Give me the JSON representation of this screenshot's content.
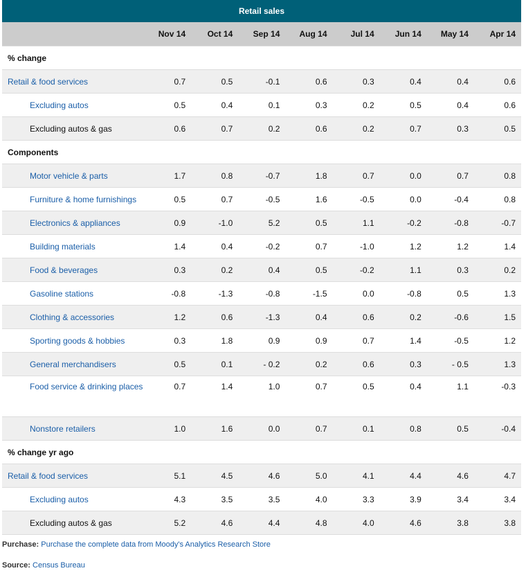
{
  "title": "Retail sales",
  "columns": [
    "Nov 14",
    "Oct 14",
    "Sep 14",
    "Aug 14",
    "Jul 14",
    "Jun 14",
    "May 14",
    "Apr 14"
  ],
  "sections": [
    {
      "label": "% change",
      "rows": [
        {
          "label": "Retail & food services",
          "indent": false,
          "link": true,
          "values": [
            "0.7",
            "0.5",
            "-0.1",
            "0.6",
            "0.3",
            "0.4",
            "0.4",
            "0.6"
          ]
        },
        {
          "label": "Excluding autos",
          "indent": true,
          "link": true,
          "values": [
            "0.5",
            "0.4",
            "0.1",
            "0.3",
            "0.2",
            "0.5",
            "0.4",
            "0.6"
          ]
        },
        {
          "label": "Excluding autos & gas",
          "indent": true,
          "link": false,
          "values": [
            "0.6",
            "0.7",
            "0.2",
            "0.6",
            "0.2",
            "0.7",
            "0.3",
            "0.5"
          ]
        }
      ]
    },
    {
      "label": "Components",
      "rows": [
        {
          "label": "Motor vehicle & parts",
          "indent": true,
          "link": true,
          "values": [
            "1.7",
            "0.8",
            "-0.7",
            "1.8",
            "0.7",
            "0.0",
            "0.7",
            "0.8"
          ]
        },
        {
          "label": "Furniture & home furnishings",
          "indent": true,
          "link": true,
          "values": [
            "0.5",
            "0.7",
            "-0.5",
            "1.6",
            "-0.5",
            "0.0",
            "-0.4",
            "0.8"
          ]
        },
        {
          "label": "Electronics & appliances",
          "indent": true,
          "link": true,
          "values": [
            "0.9",
            "-1.0",
            "5.2",
            "0.5",
            "1.1",
            "-0.2",
            "-0.8",
            "-0.7"
          ]
        },
        {
          "label": "Building materials",
          "indent": true,
          "link": true,
          "values": [
            "1.4",
            "0.4",
            "-0.2",
            "0.7",
            "-1.0",
            "1.2",
            "1.2",
            "1.4"
          ]
        },
        {
          "label": "Food & beverages",
          "indent": true,
          "link": true,
          "values": [
            "0.3",
            "0.2",
            "0.4",
            "0.5",
            "-0.2",
            "1.1",
            "0.3",
            "0.2"
          ]
        },
        {
          "label": "Gasoline stations",
          "indent": true,
          "link": true,
          "values": [
            "-0.8",
            "-1.3",
            "-0.8",
            "-1.5",
            "0.0",
            "-0.8",
            "0.5",
            "1.3"
          ]
        },
        {
          "label": "Clothing & accessories",
          "indent": true,
          "link": true,
          "values": [
            "1.2",
            "0.6",
            "-1.3",
            "0.4",
            "0.6",
            "0.2",
            "-0.6",
            "1.5"
          ]
        },
        {
          "label": "Sporting goods & hobbies",
          "indent": true,
          "link": true,
          "values": [
            "0.3",
            "1.8",
            "0.9",
            "0.9",
            "0.7",
            "1.4",
            "-0.5",
            "1.2"
          ]
        },
        {
          "label": "General merchandisers",
          "indent": true,
          "link": true,
          "values": [
            "0.5",
            "0.1",
            "- 0.2",
            "0.2",
            "0.6",
            "0.3",
            "- 0.5",
            "1.3"
          ]
        },
        {
          "label": "Food service & drinking places",
          "indent": true,
          "link": true,
          "tall": true,
          "values": [
            "0.7",
            "1.4",
            "1.0",
            "0.7",
            "0.5",
            "0.4",
            "1.1",
            "-0.3"
          ]
        },
        {
          "label": "Nonstore retailers",
          "indent": true,
          "link": true,
          "values": [
            "1.0",
            "1.6",
            "0.0",
            "0.7",
            "0.1",
            "0.8",
            "0.5",
            "-0.4"
          ]
        }
      ]
    },
    {
      "label": "% change yr ago",
      "rows": [
        {
          "label": "Retail & food services",
          "indent": false,
          "link": true,
          "values": [
            "5.1",
            "4.5",
            "4.6",
            "5.0",
            "4.1",
            "4.4",
            "4.6",
            "4.7"
          ]
        },
        {
          "label": "Excluding autos",
          "indent": true,
          "link": true,
          "values": [
            "4.3",
            "3.5",
            "3.5",
            "4.0",
            "3.3",
            "3.9",
            "3.4",
            "3.4"
          ]
        },
        {
          "label": "Excluding autos & gas",
          "indent": true,
          "link": false,
          "values": [
            "5.2",
            "4.6",
            "4.4",
            "4.8",
            "4.0",
            "4.6",
            "3.8",
            "3.8"
          ]
        }
      ]
    }
  ],
  "footer": {
    "purchase_label": "Purchase:",
    "purchase_link": "Purchase the complete data from Moody's Analytics Research Store",
    "source_label": "Source:",
    "source_link": "Census Bureau"
  }
}
